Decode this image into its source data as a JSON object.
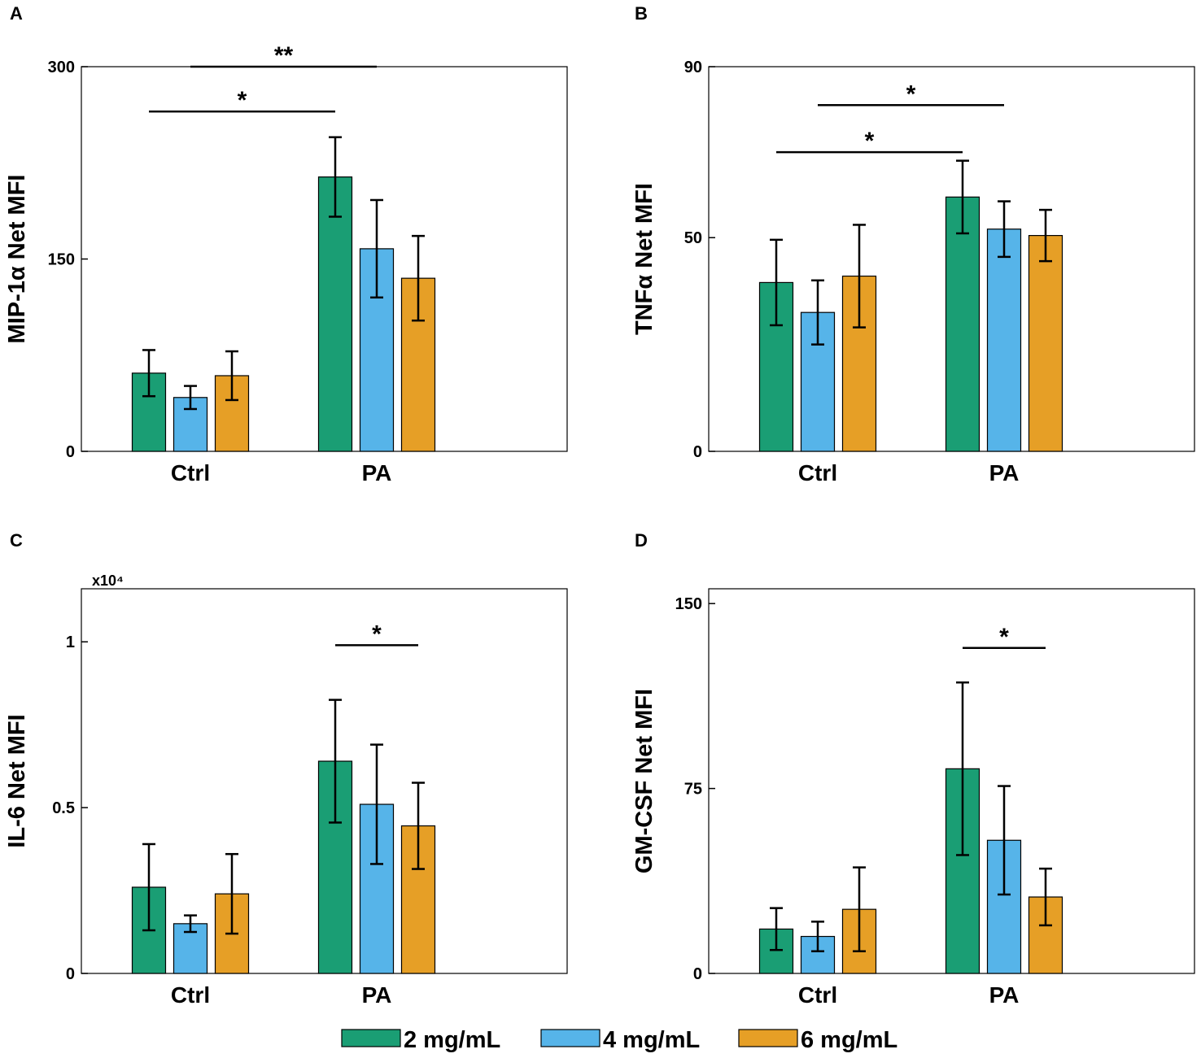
{
  "legend": {
    "items": [
      {
        "label": "2 mg/mL",
        "color": "#1a9e74"
      },
      {
        "label": "4 mg/mL",
        "color": "#56b4e9"
      },
      {
        "label": "6 mg/mL",
        "color": "#e69f26"
      }
    ]
  },
  "chart_data": [
    {
      "panel": "A",
      "type": "bar",
      "title": "",
      "ylabel": "MIP-1α Net MFI",
      "xlabel": "",
      "multiplier": "",
      "categories": [
        "Ctrl",
        "PA"
      ],
      "ylim": [
        0,
        300
      ],
      "yticks": [
        0,
        150,
        300
      ],
      "ytick_labels": [
        "0",
        "150",
        "300"
      ],
      "series": [
        {
          "name": "2 mg/mL",
          "values": [
            61,
            214
          ],
          "errors": [
            18,
            31
          ]
        },
        {
          "name": "4 mg/mL",
          "values": [
            42,
            158
          ],
          "errors": [
            9,
            38
          ]
        },
        {
          "name": "6 mg/mL",
          "values": [
            59,
            135
          ],
          "errors": [
            19,
            33
          ]
        }
      ],
      "significance": [
        {
          "label": "**",
          "from": [
            0,
            1
          ],
          "to": [
            1,
            1
          ],
          "y": 300
        },
        {
          "label": "*",
          "from": [
            0,
            0
          ],
          "to": [
            1,
            0
          ],
          "y": 265
        }
      ]
    },
    {
      "panel": "B",
      "type": "bar",
      "title": "",
      "ylabel": "TNFα Net MFI",
      "xlabel": "",
      "multiplier": "",
      "categories": [
        "Ctrl",
        "PA"
      ],
      "ylim": [
        0,
        90
      ],
      "yticks": [
        0,
        50,
        90
      ],
      "ytick_labels": [
        "0",
        "50",
        "90"
      ],
      "series": [
        {
          "name": "2 mg/mL",
          "values": [
            39.5,
            59.5
          ],
          "errors": [
            10,
            8.5
          ]
        },
        {
          "name": "4 mg/mL",
          "values": [
            32.5,
            52
          ],
          "errors": [
            7.5,
            6.5
          ]
        },
        {
          "name": "6 mg/mL",
          "values": [
            41,
            50.5
          ],
          "errors": [
            12,
            6
          ]
        }
      ],
      "significance": [
        {
          "label": "*",
          "from": [
            0,
            1
          ],
          "to": [
            1,
            1
          ],
          "y": 81
        },
        {
          "label": "*",
          "from": [
            0,
            0
          ],
          "to": [
            1,
            0
          ],
          "y": 70
        }
      ]
    },
    {
      "panel": "C",
      "type": "bar",
      "title": "",
      "ylabel": "IL-6 Net MFI",
      "xlabel": "",
      "multiplier": "x10⁴",
      "categories": [
        "Ctrl",
        "PA"
      ],
      "ylim": [
        0,
        1.16
      ],
      "yticks": [
        0,
        0.5,
        1
      ],
      "ytick_labels": [
        "0",
        "0.5",
        "1"
      ],
      "series": [
        {
          "name": "2 mg/mL",
          "values": [
            0.26,
            0.64
          ],
          "errors": [
            0.13,
            0.185
          ]
        },
        {
          "name": "4 mg/mL",
          "values": [
            0.15,
            0.51
          ],
          "errors": [
            0.025,
            0.18
          ]
        },
        {
          "name": "6 mg/mL",
          "values": [
            0.24,
            0.445
          ],
          "errors": [
            0.12,
            0.13
          ]
        }
      ],
      "significance": [
        {
          "label": "*",
          "from": [
            1,
            0
          ],
          "to": [
            1,
            2
          ],
          "y": 0.99
        }
      ]
    },
    {
      "panel": "D",
      "type": "bar",
      "title": "",
      "ylabel": "GM-CSF Net MFI",
      "xlabel": "",
      "multiplier": "",
      "categories": [
        "Ctrl",
        "PA"
      ],
      "ylim": [
        0,
        156
      ],
      "yticks": [
        0,
        75,
        150
      ],
      "ytick_labels": [
        "0",
        "75",
        "150"
      ],
      "series": [
        {
          "name": "2 mg/mL",
          "values": [
            18,
            83
          ],
          "errors": [
            8.5,
            35
          ]
        },
        {
          "name": "4 mg/mL",
          "values": [
            15,
            54
          ],
          "errors": [
            6,
            22
          ]
        },
        {
          "name": "6 mg/mL",
          "values": [
            26,
            31
          ],
          "errors": [
            17,
            11.5
          ]
        }
      ],
      "significance": [
        {
          "label": "*",
          "from": [
            1,
            0
          ],
          "to": [
            1,
            2
          ],
          "y": 132
        }
      ]
    }
  ]
}
